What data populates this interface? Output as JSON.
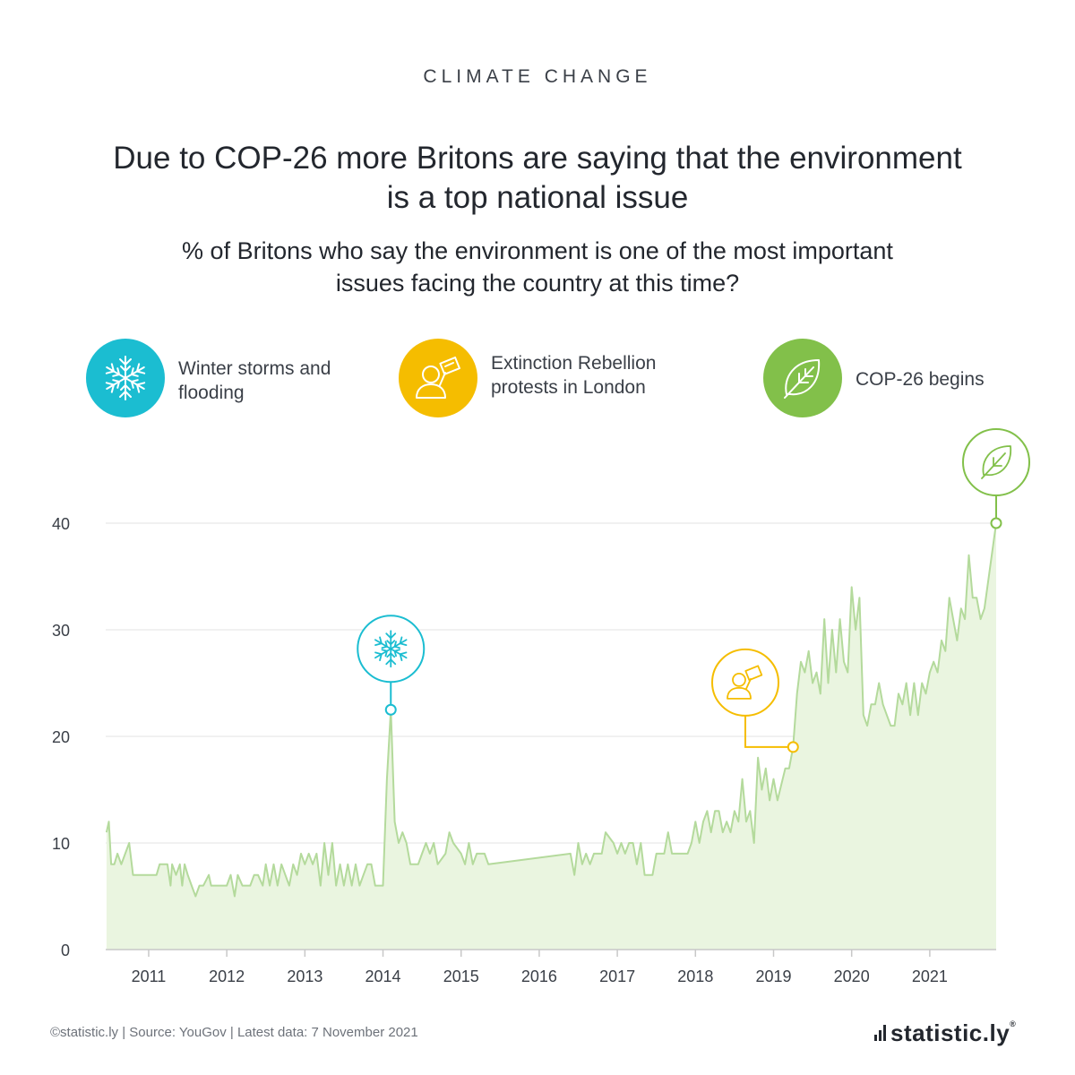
{
  "kicker": "CLIMATE CHANGE",
  "title": "Due to COP-26 more Britons are saying that the environment is a top national issue",
  "subtitle": "% of Britons who say the environment is one of the most important issues facing the country at this time?",
  "legend": [
    {
      "label": "Winter storms and flooding",
      "icon": "snowflake-icon",
      "color": "#1bbdd1"
    },
    {
      "label": "Extinction Rebellion protests in London",
      "icon": "protester-sign-icon",
      "color": "#f5bd00"
    },
    {
      "label": "COP-26 begins",
      "icon": "leaf-icon",
      "color": "#82c04a"
    }
  ],
  "footer": "©statistic.ly | Source: YouGov | Latest data: 7 November 2021",
  "logo": "statistic.ly",
  "logo_mark": "®",
  "colors": {
    "line": "#b4da9c",
    "fill": "#eaf5e0",
    "grid": "#e3e3e3",
    "axis": "#c8c8c8",
    "teal": "#1bbdd1",
    "yellow": "#f5bd00",
    "green": "#82c04a"
  },
  "chart_data": {
    "type": "area",
    "title": "",
    "xlabel": "",
    "ylabel": "",
    "ylim": [
      0,
      45
    ],
    "yticks": [
      0,
      10,
      20,
      30,
      40
    ],
    "xlim": [
      2010.45,
      2021.85
    ],
    "xticks": [
      "2011",
      "2012",
      "2013",
      "2014",
      "2015",
      "2016",
      "2017",
      "2018",
      "2019",
      "2020",
      "2021"
    ],
    "grid": true,
    "series": [
      {
        "name": "",
        "points": [
          [
            2010.46,
            11
          ],
          [
            2010.49,
            12
          ],
          [
            2010.52,
            8
          ],
          [
            2010.56,
            8
          ],
          [
            2010.6,
            9
          ],
          [
            2010.65,
            8
          ],
          [
            2010.7,
            9
          ],
          [
            2010.75,
            10
          ],
          [
            2010.8,
            7
          ],
          [
            2010.9,
            7
          ],
          [
            2011.0,
            7
          ],
          [
            2011.1,
            7
          ],
          [
            2011.14,
            8
          ],
          [
            2011.2,
            8
          ],
          [
            2011.24,
            8
          ],
          [
            2011.28,
            6
          ],
          [
            2011.3,
            8
          ],
          [
            2011.35,
            7
          ],
          [
            2011.4,
            8
          ],
          [
            2011.43,
            6
          ],
          [
            2011.46,
            8
          ],
          [
            2011.5,
            7
          ],
          [
            2011.55,
            6
          ],
          [
            2011.6,
            5
          ],
          [
            2011.65,
            6
          ],
          [
            2011.7,
            6
          ],
          [
            2011.77,
            7
          ],
          [
            2011.8,
            6
          ],
          [
            2011.9,
            6
          ],
          [
            2012.0,
            6
          ],
          [
            2012.05,
            7
          ],
          [
            2012.1,
            5
          ],
          [
            2012.14,
            7
          ],
          [
            2012.2,
            6
          ],
          [
            2012.3,
            6
          ],
          [
            2012.35,
            7
          ],
          [
            2012.4,
            7
          ],
          [
            2012.46,
            6
          ],
          [
            2012.5,
            8
          ],
          [
            2012.55,
            6
          ],
          [
            2012.6,
            8
          ],
          [
            2012.65,
            6
          ],
          [
            2012.7,
            8
          ],
          [
            2012.75,
            7
          ],
          [
            2012.8,
            6
          ],
          [
            2012.85,
            8
          ],
          [
            2012.9,
            7
          ],
          [
            2012.95,
            9
          ],
          [
            2013.0,
            8
          ],
          [
            2013.05,
            9
          ],
          [
            2013.1,
            8
          ],
          [
            2013.15,
            9
          ],
          [
            2013.2,
            6
          ],
          [
            2013.25,
            10
          ],
          [
            2013.3,
            7
          ],
          [
            2013.35,
            10
          ],
          [
            2013.4,
            6
          ],
          [
            2013.45,
            8
          ],
          [
            2013.5,
            6
          ],
          [
            2013.55,
            8
          ],
          [
            2013.6,
            6
          ],
          [
            2013.65,
            8
          ],
          [
            2013.7,
            6
          ],
          [
            2013.75,
            7
          ],
          [
            2013.8,
            8
          ],
          [
            2013.85,
            8
          ],
          [
            2013.9,
            6
          ],
          [
            2014.0,
            6
          ],
          [
            2014.05,
            16
          ],
          [
            2014.1,
            22.5
          ],
          [
            2014.15,
            12
          ],
          [
            2014.2,
            10
          ],
          [
            2014.25,
            11
          ],
          [
            2014.3,
            10
          ],
          [
            2014.35,
            8
          ],
          [
            2014.45,
            8
          ],
          [
            2014.5,
            9
          ],
          [
            2014.55,
            10
          ],
          [
            2014.6,
            9
          ],
          [
            2014.65,
            10
          ],
          [
            2014.7,
            8
          ],
          [
            2014.8,
            9
          ],
          [
            2014.85,
            11
          ],
          [
            2014.9,
            10
          ],
          [
            2015.0,
            9
          ],
          [
            2015.05,
            8
          ],
          [
            2015.1,
            10
          ],
          [
            2015.15,
            8
          ],
          [
            2015.2,
            9
          ],
          [
            2015.3,
            9
          ],
          [
            2015.35,
            8
          ],
          [
            2016.4,
            9
          ],
          [
            2016.45,
            7
          ],
          [
            2016.5,
            10
          ],
          [
            2016.55,
            8
          ],
          [
            2016.6,
            9
          ],
          [
            2016.65,
            8
          ],
          [
            2016.7,
            9
          ],
          [
            2016.8,
            9
          ],
          [
            2016.85,
            11
          ],
          [
            2016.95,
            10
          ],
          [
            2017.0,
            9
          ],
          [
            2017.05,
            10
          ],
          [
            2017.1,
            9
          ],
          [
            2017.15,
            10
          ],
          [
            2017.2,
            10
          ],
          [
            2017.25,
            8
          ],
          [
            2017.3,
            10
          ],
          [
            2017.35,
            7
          ],
          [
            2017.45,
            7
          ],
          [
            2017.5,
            9
          ],
          [
            2017.6,
            9
          ],
          [
            2017.65,
            11
          ],
          [
            2017.7,
            9
          ],
          [
            2017.8,
            9
          ],
          [
            2017.9,
            9
          ],
          [
            2017.95,
            10
          ],
          [
            2018.0,
            12
          ],
          [
            2018.05,
            10
          ],
          [
            2018.1,
            12
          ],
          [
            2018.15,
            13
          ],
          [
            2018.2,
            11
          ],
          [
            2018.25,
            13
          ],
          [
            2018.3,
            13
          ],
          [
            2018.35,
            11
          ],
          [
            2018.4,
            12
          ],
          [
            2018.45,
            11
          ],
          [
            2018.5,
            13
          ],
          [
            2018.55,
            12
          ],
          [
            2018.6,
            16
          ],
          [
            2018.65,
            12
          ],
          [
            2018.7,
            13
          ],
          [
            2018.75,
            10
          ],
          [
            2018.8,
            18
          ],
          [
            2018.85,
            15
          ],
          [
            2018.9,
            17
          ],
          [
            2018.95,
            14
          ],
          [
            2019.0,
            16
          ],
          [
            2019.05,
            14
          ],
          [
            2019.15,
            17
          ],
          [
            2019.2,
            17
          ],
          [
            2019.25,
            19
          ],
          [
            2019.3,
            24
          ],
          [
            2019.35,
            27
          ],
          [
            2019.4,
            26
          ],
          [
            2019.45,
            28
          ],
          [
            2019.5,
            25
          ],
          [
            2019.55,
            26
          ],
          [
            2019.6,
            24
          ],
          [
            2019.65,
            31
          ],
          [
            2019.7,
            25
          ],
          [
            2019.75,
            30
          ],
          [
            2019.8,
            26
          ],
          [
            2019.85,
            31
          ],
          [
            2019.9,
            27
          ],
          [
            2019.95,
            26
          ],
          [
            2020.0,
            34
          ],
          [
            2020.05,
            30
          ],
          [
            2020.1,
            33
          ],
          [
            2020.15,
            22
          ],
          [
            2020.2,
            21
          ],
          [
            2020.25,
            23
          ],
          [
            2020.3,
            23
          ],
          [
            2020.35,
            25
          ],
          [
            2020.4,
            23
          ],
          [
            2020.45,
            22
          ],
          [
            2020.5,
            21
          ],
          [
            2020.55,
            21
          ],
          [
            2020.6,
            24
          ],
          [
            2020.65,
            23
          ],
          [
            2020.7,
            25
          ],
          [
            2020.75,
            22
          ],
          [
            2020.8,
            25
          ],
          [
            2020.85,
            22
          ],
          [
            2020.9,
            25
          ],
          [
            2020.95,
            24
          ],
          [
            2021.0,
            26
          ],
          [
            2021.05,
            27
          ],
          [
            2021.1,
            26
          ],
          [
            2021.15,
            29
          ],
          [
            2021.2,
            28
          ],
          [
            2021.25,
            33
          ],
          [
            2021.3,
            31
          ],
          [
            2021.35,
            29
          ],
          [
            2021.4,
            32
          ],
          [
            2021.45,
            31
          ],
          [
            2021.5,
            37
          ],
          [
            2021.55,
            33
          ],
          [
            2021.6,
            33
          ],
          [
            2021.65,
            31
          ],
          [
            2021.7,
            32
          ],
          [
            2021.85,
            40
          ]
        ]
      }
    ],
    "annotations": [
      {
        "x": 2014.1,
        "y": 22.5,
        "event": "Winter storms and flooding",
        "icon": "snowflake-icon",
        "color": "#1bbdd1"
      },
      {
        "x": 2019.25,
        "y": 19,
        "event": "Extinction Rebellion protests in London",
        "icon": "protester-sign-icon",
        "color": "#f5bd00"
      },
      {
        "x": 2021.85,
        "y": 40,
        "event": "COP-26 begins",
        "icon": "leaf-icon",
        "color": "#82c04a"
      }
    ]
  }
}
